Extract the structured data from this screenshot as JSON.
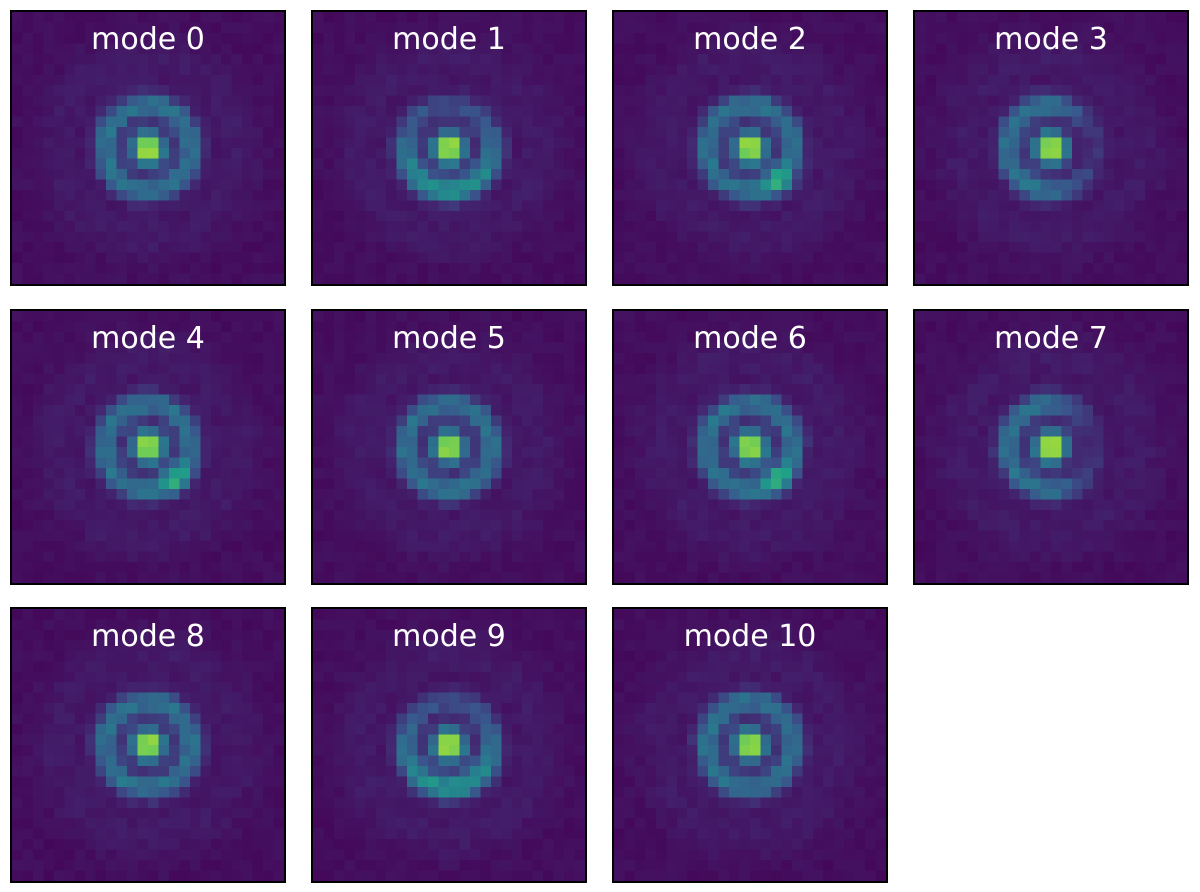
{
  "colormap": "viridis",
  "colors": {
    "background": "#440d5a",
    "ring": "#2d8a8a",
    "core": "#d9e52a",
    "frame": "#000000",
    "title_text": "#ffffff"
  },
  "panels": [
    {
      "title": "mode 0",
      "asymmetry": "round"
    },
    {
      "title": "mode 1",
      "asymmetry": "ring-bright-bottom"
    },
    {
      "title": "mode 2",
      "asymmetry": "lobe-lower-right"
    },
    {
      "title": "mode 3",
      "asymmetry": "ring-open-right"
    },
    {
      "title": "mode 4",
      "asymmetry": "lobe-lower-right"
    },
    {
      "title": "mode 5",
      "asymmetry": "round"
    },
    {
      "title": "mode 6",
      "asymmetry": "lobe-lower-right"
    },
    {
      "title": "mode 7",
      "asymmetry": "ring-open-right"
    },
    {
      "title": "mode 8",
      "asymmetry": "round"
    },
    {
      "title": "mode 9",
      "asymmetry": "ring-bright-bottom"
    },
    {
      "title": "mode 10",
      "asymmetry": "round"
    }
  ]
}
